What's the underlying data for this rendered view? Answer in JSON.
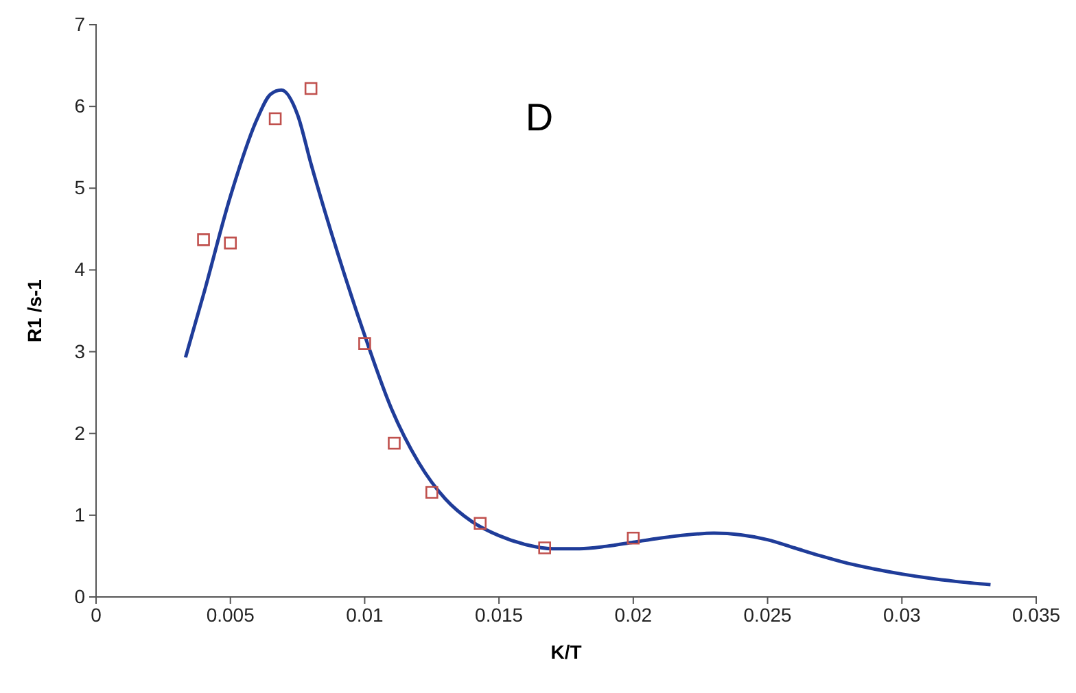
{
  "chart_data": {
    "type": "scatter",
    "xlabel": "K/T",
    "ylabel": "R1 /s-1",
    "annotations": [
      "D"
    ],
    "xlim": [
      0,
      0.035
    ],
    "xticks": [
      0,
      0.005,
      0.01,
      0.015,
      0.02,
      0.025,
      0.03,
      0.035
    ],
    "ylim": [
      0,
      7
    ],
    "yticks": [
      0,
      1,
      2,
      3,
      4,
      5,
      6,
      7
    ],
    "grid": false,
    "series": [
      {
        "type": "line",
        "color": "#1f3c99",
        "marker": "none",
        "line_style": "solid",
        "x": [
          0.00333,
          0.004,
          0.005,
          0.006,
          0.0065,
          0.0069,
          0.0075,
          0.008,
          0.009,
          0.01,
          0.011,
          0.012,
          0.013,
          0.014,
          0.015,
          0.016,
          0.017,
          0.018,
          0.019,
          0.02,
          0.021,
          0.022,
          0.023,
          0.024,
          0.025,
          0.026,
          0.027,
          0.028,
          0.029,
          0.03,
          0.031,
          0.032,
          0.0333
        ],
        "values": [
          2.93,
          3.7,
          4.9,
          5.85,
          6.15,
          6.2,
          5.9,
          5.3,
          4.2,
          3.2,
          2.3,
          1.65,
          1.2,
          0.92,
          0.75,
          0.64,
          0.59,
          0.59,
          0.62,
          0.67,
          0.72,
          0.76,
          0.78,
          0.76,
          0.7,
          0.6,
          0.5,
          0.41,
          0.34,
          0.28,
          0.23,
          0.19,
          0.15
        ]
      },
      {
        "color": "#c0504d",
        "marker": "square",
        "x": [
          0.004,
          0.005,
          0.00667,
          0.008,
          0.01,
          0.0111,
          0.0125,
          0.0143,
          0.0167,
          0.02
        ],
        "values": [
          4.37,
          4.33,
          5.85,
          6.22,
          3.1,
          1.88,
          1.28,
          0.9,
          0.6,
          0.72
        ]
      }
    ]
  }
}
